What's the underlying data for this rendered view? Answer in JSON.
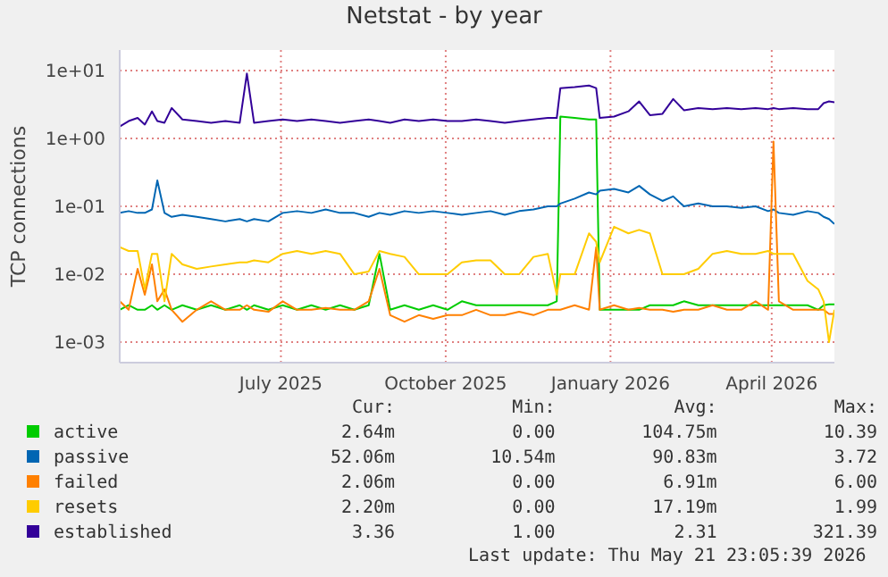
{
  "chart_data": {
    "type": "line",
    "title": "Netstat - by year",
    "ylabel": "TCP connections",
    "log": "y",
    "grid": true,
    "legend": "bottom",
    "marker": "none",
    "line_style": "solid",
    "xlim": [
      "2025-04-17",
      "2026-05-21"
    ],
    "xticks": [
      {
        "value": "2025-07-16",
        "label": "July 2025"
      },
      {
        "value": "2025-10-16",
        "label": "October 2025"
      },
      {
        "value": "2026-01-16",
        "label": "January 2026"
      },
      {
        "value": "2026-04-16",
        "label": "April 2026"
      }
    ],
    "ylim": [
      0.0005,
      20
    ],
    "yticks": [
      {
        "value": 0.001,
        "label": "1e-03"
      },
      {
        "value": 0.01,
        "label": "1e-02"
      },
      {
        "value": 0.1,
        "label": "1e-01"
      },
      {
        "value": 1,
        "label": "1e+00"
      },
      {
        "value": 10,
        "label": "1e+01"
      }
    ],
    "x": [
      "2025-04-17",
      "2025-04-22",
      "2025-04-27",
      "2025-05-01",
      "2025-05-05",
      "2025-05-08",
      "2025-05-12",
      "2025-05-16",
      "2025-05-22",
      "2025-05-30",
      "2025-06-07",
      "2025-06-15",
      "2025-06-23",
      "2025-06-27",
      "2025-07-01",
      "2025-07-09",
      "2025-07-17",
      "2025-07-25",
      "2025-08-02",
      "2025-08-10",
      "2025-08-18",
      "2025-08-26",
      "2025-09-03",
      "2025-09-09",
      "2025-09-15",
      "2025-09-23",
      "2025-10-01",
      "2025-10-09",
      "2025-10-17",
      "2025-10-25",
      "2025-11-02",
      "2025-11-10",
      "2025-11-18",
      "2025-11-26",
      "2025-12-04",
      "2025-12-12",
      "2025-12-17",
      "2025-12-19",
      "2025-12-27",
      "2026-01-04",
      "2026-01-08",
      "2026-01-10",
      "2026-01-18",
      "2026-01-26",
      "2026-02-01",
      "2026-02-07",
      "2026-02-14",
      "2026-02-20",
      "2026-02-26",
      "2026-03-06",
      "2026-03-14",
      "2026-03-22",
      "2026-03-30",
      "2026-04-07",
      "2026-04-14",
      "2026-04-17",
      "2026-04-20",
      "2026-04-28",
      "2026-05-06",
      "2026-05-12",
      "2026-05-15",
      "2026-05-18",
      "2026-05-21"
    ],
    "series": [
      {
        "name": "active",
        "color": "#00cc00",
        "values": [
          0.003,
          0.0035,
          0.003,
          0.003,
          0.0035,
          0.003,
          0.0035,
          0.003,
          0.0035,
          0.003,
          0.0035,
          0.003,
          0.0035,
          0.003,
          0.0035,
          0.003,
          0.0035,
          0.003,
          0.0035,
          0.003,
          0.0035,
          0.003,
          0.0035,
          0.02,
          0.003,
          0.0035,
          0.003,
          0.0035,
          0.003,
          0.004,
          0.0035,
          0.0035,
          0.0035,
          0.0035,
          0.0035,
          0.0035,
          0.004,
          2.1,
          2.0,
          1.9,
          1.9,
          0.003,
          0.003,
          0.003,
          0.003,
          0.0035,
          0.0035,
          0.0035,
          0.004,
          0.0035,
          0.0035,
          0.0035,
          0.0035,
          0.0035,
          0.0035,
          0.0035,
          0.0035,
          0.0035,
          0.0035,
          0.003,
          0.0035,
          0.0036,
          0.0036
        ]
      },
      {
        "name": "passive",
        "color": "#0066b3",
        "values": [
          0.08,
          0.085,
          0.08,
          0.08,
          0.09,
          0.24,
          0.08,
          0.07,
          0.075,
          0.07,
          0.065,
          0.06,
          0.065,
          0.06,
          0.065,
          0.06,
          0.08,
          0.085,
          0.08,
          0.09,
          0.08,
          0.08,
          0.07,
          0.08,
          0.075,
          0.085,
          0.08,
          0.085,
          0.08,
          0.075,
          0.08,
          0.085,
          0.075,
          0.085,
          0.09,
          0.1,
          0.1,
          0.11,
          0.13,
          0.16,
          0.15,
          0.17,
          0.18,
          0.16,
          0.2,
          0.15,
          0.12,
          0.14,
          0.1,
          0.11,
          0.1,
          0.1,
          0.095,
          0.1,
          0.085,
          0.09,
          0.08,
          0.075,
          0.085,
          0.08,
          0.07,
          0.065,
          0.055
        ]
      },
      {
        "name": "failed",
        "color": "#ff8000",
        "values": [
          0.004,
          0.003,
          0.012,
          0.005,
          0.014,
          0.004,
          0.006,
          0.003,
          0.002,
          0.003,
          0.004,
          0.003,
          0.003,
          0.0035,
          0.003,
          0.0028,
          0.004,
          0.003,
          0.003,
          0.0032,
          0.003,
          0.003,
          0.004,
          0.012,
          0.0025,
          0.002,
          0.0025,
          0.0022,
          0.0025,
          0.0025,
          0.003,
          0.0025,
          0.0025,
          0.0028,
          0.0025,
          0.003,
          0.003,
          0.003,
          0.0035,
          0.003,
          0.025,
          0.003,
          0.0035,
          0.003,
          0.0032,
          0.003,
          0.003,
          0.0028,
          0.003,
          0.003,
          0.0035,
          0.003,
          0.003,
          0.004,
          0.003,
          0.9,
          0.004,
          0.003,
          0.003,
          0.003,
          0.003,
          0.0026,
          0.0026
        ]
      },
      {
        "name": "resets",
        "color": "#ffcc00",
        "values": [
          0.025,
          0.022,
          0.022,
          0.006,
          0.02,
          0.02,
          0.004,
          0.02,
          0.014,
          0.012,
          0.013,
          0.014,
          0.015,
          0.015,
          0.016,
          0.015,
          0.02,
          0.022,
          0.02,
          0.022,
          0.02,
          0.01,
          0.011,
          0.022,
          0.02,
          0.018,
          0.01,
          0.01,
          0.01,
          0.015,
          0.016,
          0.016,
          0.01,
          0.01,
          0.018,
          0.02,
          0.005,
          0.01,
          0.01,
          0.04,
          0.03,
          0.015,
          0.05,
          0.04,
          0.045,
          0.04,
          0.01,
          0.01,
          0.01,
          0.012,
          0.02,
          0.022,
          0.02,
          0.02,
          0.022,
          0.02,
          0.02,
          0.02,
          0.008,
          0.006,
          0.004,
          0.001,
          0.003
        ]
      },
      {
        "name": "established",
        "color": "#330099",
        "values": [
          1.5,
          1.8,
          2.0,
          1.6,
          2.5,
          1.8,
          1.7,
          2.8,
          1.9,
          1.8,
          1.7,
          1.8,
          1.7,
          9,
          1.7,
          1.8,
          1.9,
          1.8,
          1.9,
          1.8,
          1.7,
          1.8,
          1.9,
          1.8,
          1.7,
          1.9,
          1.8,
          1.9,
          1.8,
          1.8,
          1.9,
          1.8,
          1.7,
          1.8,
          1.9,
          2.0,
          2.0,
          5.5,
          5.7,
          6.0,
          5.5,
          2.0,
          2.1,
          2.5,
          3.5,
          2.2,
          2.3,
          3.8,
          2.6,
          2.8,
          2.7,
          2.8,
          2.7,
          2.8,
          2.7,
          2.8,
          2.7,
          2.8,
          2.7,
          2.7,
          3.3,
          3.5,
          3.4
        ]
      }
    ],
    "annotations": [
      "Cur:",
      "Min:",
      "Avg:",
      "Max:",
      "2.64m",
      "0.00",
      "104.75m",
      "10.39",
      "52.06m",
      "10.54m",
      "90.83m",
      "3.72",
      "2.06m",
      "0.00",
      "6.91m",
      "6.00",
      "2.20m",
      "0.00",
      "17.19m",
      "1.99",
      "3.36",
      "1.00",
      "2.31",
      "321.39",
      "Last update: Thu May 21 23:05:39 2026"
    ]
  }
}
